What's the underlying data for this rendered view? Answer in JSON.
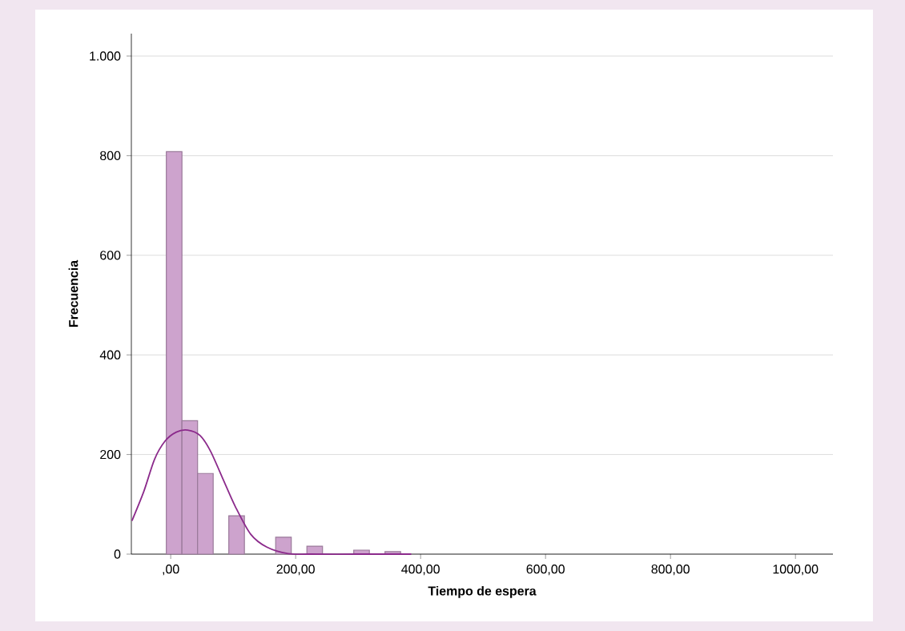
{
  "chart_data": {
    "type": "histogram",
    "xlabel": "Tiempo de espera",
    "ylabel": "Frecuencia",
    "bins": [
      -7,
      18,
      43,
      68,
      93,
      118,
      143,
      168,
      193,
      218,
      243,
      268,
      293,
      318,
      343,
      368
    ],
    "values": [
      808,
      268,
      162,
      0,
      77,
      0,
      0,
      34,
      0,
      16,
      0,
      0,
      8,
      0,
      5
    ],
    "color": "#cda3cd",
    "series": [
      {
        "type": "line",
        "color": "#8b2a8b",
        "x": [
          -62,
          -43,
          -26,
          -9,
          9,
          27,
          47,
          64,
          85,
          104,
          128,
          154,
          188,
          222,
          300,
          385
        ],
        "values": [
          67,
          126,
          190,
          227,
          245,
          249,
          238,
          206,
          147,
          94,
          40,
          14,
          1,
          0,
          0,
          0
        ]
      }
    ],
    "xlim": [
      -63,
      1060
    ],
    "ylim": [
      0,
      1045
    ],
    "xticks": [
      {
        "value": 0,
        "label": ",00"
      },
      {
        "value": 200,
        "label": "200,00"
      },
      {
        "value": 400,
        "label": "400,00"
      },
      {
        "value": 600,
        "label": "600,00"
      },
      {
        "value": 800,
        "label": "800,00"
      },
      {
        "value": 1000,
        "label": "1000,00"
      }
    ],
    "yticks": [
      0,
      200,
      400,
      600,
      800,
      {
        "value": 1000,
        "label": "1.000"
      }
    ],
    "grid": "y"
  }
}
